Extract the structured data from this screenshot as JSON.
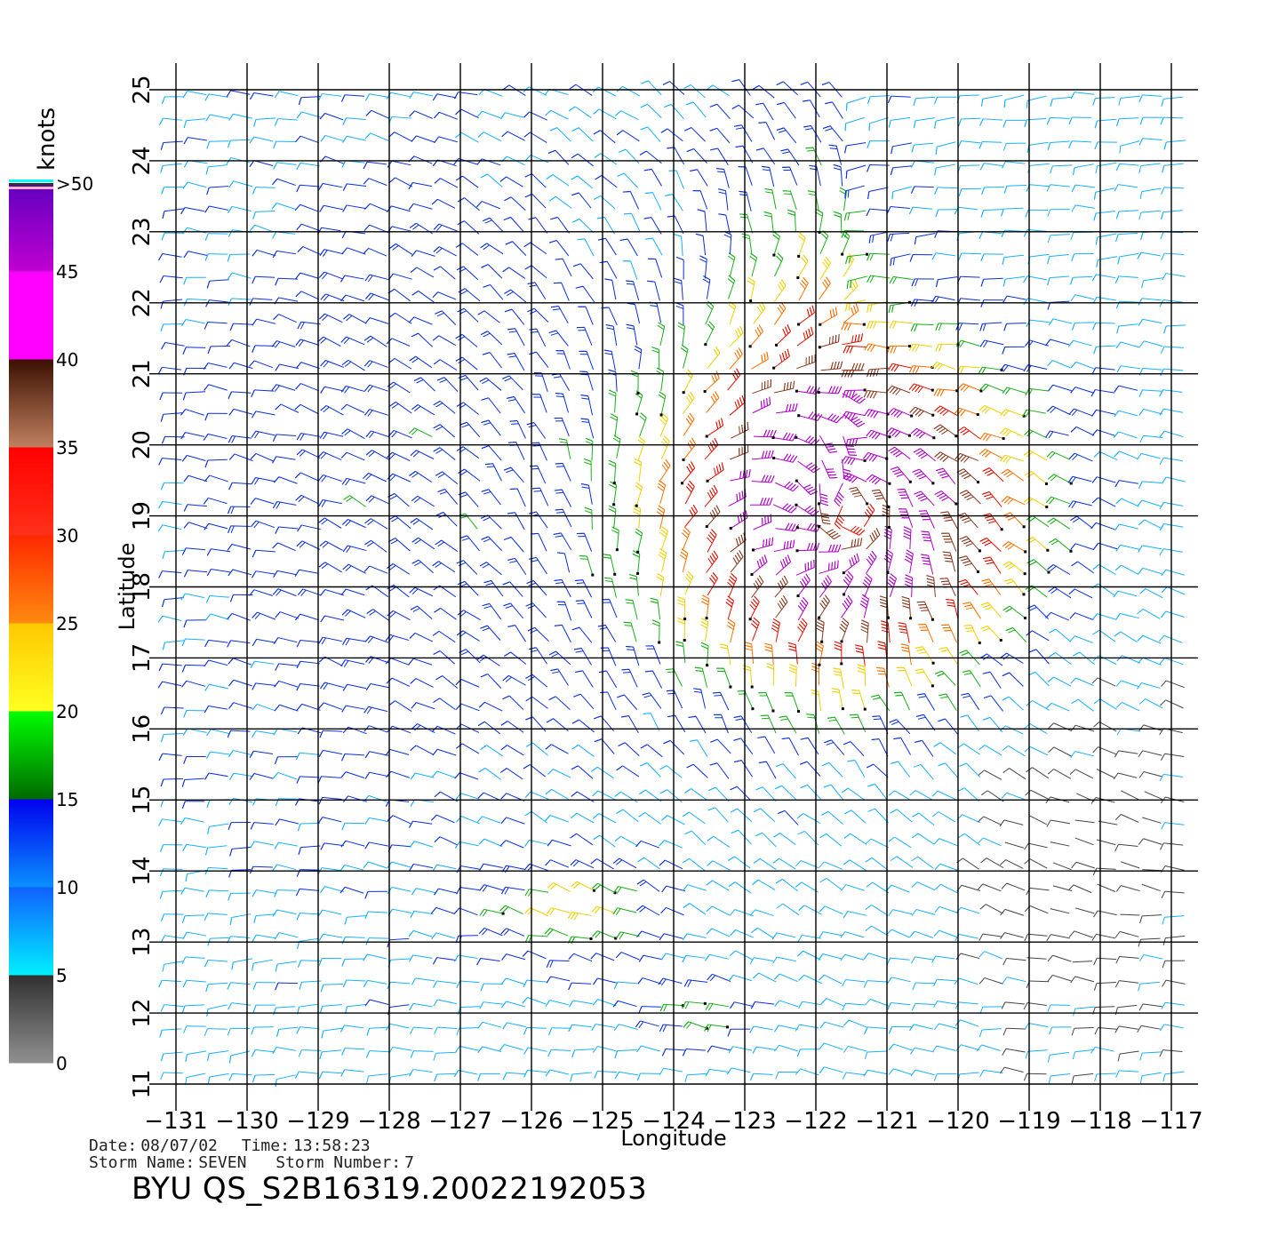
{
  "window": {
    "title": "BYU  QS_S2B16319.20022192053"
  },
  "colorbar": {
    "unit_label": "knots",
    "labels": [
      "0",
      "5",
      "10",
      "15",
      "20",
      "25",
      "30",
      "35",
      "40",
      "45",
      ">50"
    ],
    "bands": [
      {
        "from": 0,
        "to": 5,
        "top": "#303030",
        "bottom": "#909090"
      },
      {
        "from": 5,
        "to": 10,
        "top": "#1060ff",
        "bottom": "#00f0ff"
      },
      {
        "from": 10,
        "to": 15,
        "top": "#0000ee",
        "bottom": "#0a90ff"
      },
      {
        "from": 15,
        "to": 20,
        "top": "#00ff00",
        "bottom": "#006a00"
      },
      {
        "from": 20,
        "to": 25,
        "top": "#ffc800",
        "bottom": "#ffff20"
      },
      {
        "from": 25,
        "to": 30,
        "top": "#ff2800",
        "bottom": "#ff8a10"
      },
      {
        "from": 30,
        "to": 35,
        "top": "#ff0000",
        "bottom": "#ff3018"
      },
      {
        "from": 35,
        "to": 40,
        "top": "#3a1000",
        "bottom": "#c08060"
      },
      {
        "from": 40,
        "to": 45,
        "top": "#ff00ff",
        "bottom": "#ff00ff"
      },
      {
        "from": 45,
        "to": 50,
        "top": "#6000c0",
        "bottom": "#c000d0"
      }
    ]
  },
  "map": {
    "xlabel": "Longitude",
    "ylabel": "Latitude",
    "lon_range": [
      -131,
      -117
    ],
    "lat_range": [
      11,
      25
    ],
    "lon_ticks": [
      "-131",
      "-130",
      "-129",
      "-128",
      "-127",
      "-126",
      "-125",
      "-124",
      "-123",
      "-122",
      "-121",
      "-120",
      "-119",
      "-118",
      "-117"
    ],
    "lat_ticks": [
      "11",
      "12",
      "13",
      "14",
      "15",
      "16",
      "17",
      "18",
      "19",
      "20",
      "21",
      "22",
      "23",
      "24",
      "25"
    ],
    "grid": true,
    "storm_center": {
      "lon": -121.5,
      "lat": 19.0
    }
  },
  "metadata": {
    "date_label": "Date:",
    "date": "08/07/02",
    "time_label": "Time:",
    "time": "13:58:23",
    "storm_name_label": "Storm Name:",
    "storm_name": "SEVEN",
    "storm_number_label": "Storm Number:",
    "storm_number": "7"
  },
  "chart_data": {
    "type": "wind-barb-map",
    "title": "BYU  QS_S2B16319.20022192053",
    "xlabel": "Longitude",
    "ylabel": "Latitude",
    "xlim": [
      -131,
      -117
    ],
    "ylim": [
      11,
      25
    ],
    "units": "knots",
    "storm_center": {
      "lon": -121.5,
      "lat": 19.0
    },
    "max_wind_region": {
      "lon": [
        -123,
        -120.5
      ],
      "lat": [
        18,
        20
      ],
      "speed_kt": 40
    }
  }
}
